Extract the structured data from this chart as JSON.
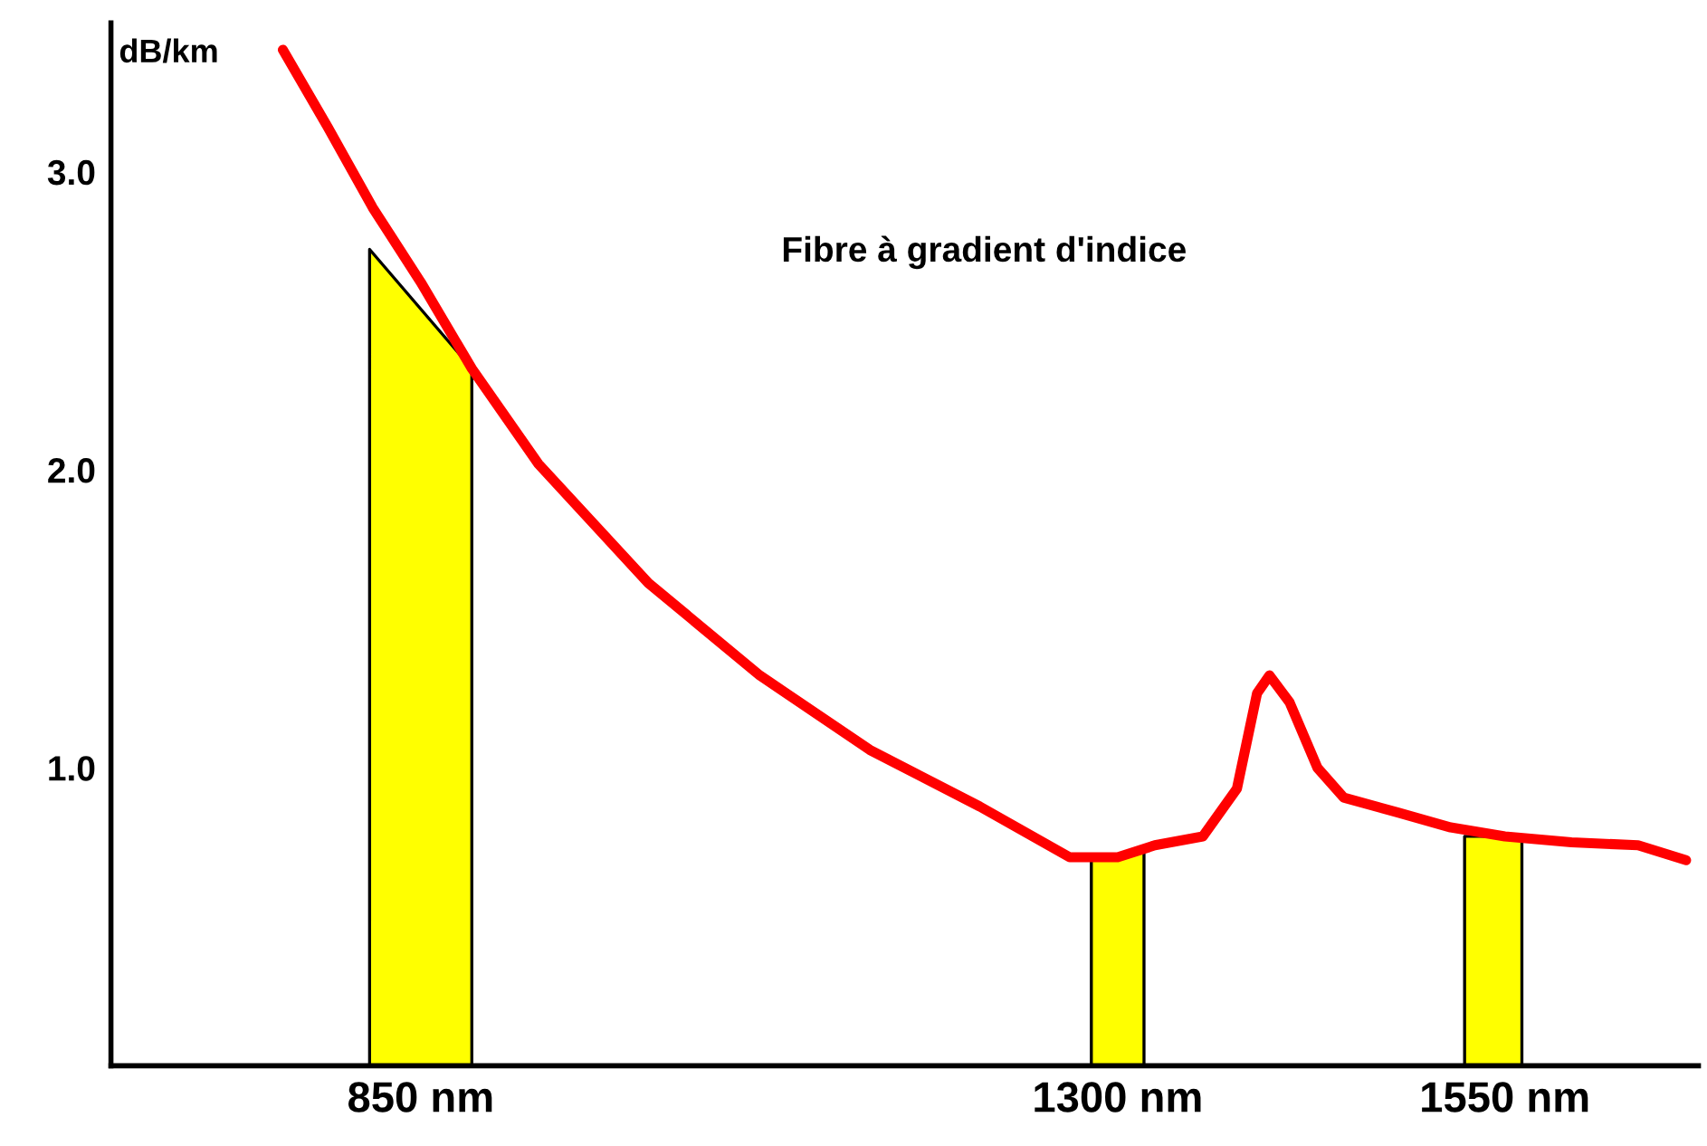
{
  "chart_data": {
    "type": "line",
    "ylabel": "dB/km",
    "annotations": [
      "Fibre à gradient d'indice"
    ],
    "xlim": [
      650,
      1675
    ],
    "ylim": [
      0,
      3.5
    ],
    "xticks": [
      {
        "value": 850,
        "label": "850 nm"
      },
      {
        "value": 1300,
        "label": "1300 nm"
      },
      {
        "value": 1550,
        "label": "1550 nm"
      }
    ],
    "yticks": [
      {
        "value": 1,
        "label": "1.0"
      },
      {
        "value": 2,
        "label": "2.0"
      },
      {
        "value": 3,
        "label": "3.0"
      }
    ],
    "grid": false,
    "series": [
      {
        "type": "area",
        "color": "#ffff00",
        "x": [
          817,
          883
        ],
        "values": [
          2.74,
          2.34
        ]
      },
      {
        "type": "area",
        "color": "#ffff00",
        "x": [
          1283,
          1317
        ],
        "values": [
          0.7,
          0.72
        ]
      },
      {
        "type": "area",
        "color": "#ffff00",
        "x": [
          1524,
          1561
        ],
        "values": [
          0.77,
          0.77
        ]
      },
      {
        "color": "#ff0000",
        "x": [
          761,
          790,
          819,
          850,
          883,
          926,
          997,
          1069,
          1140,
          1211,
          1269,
          1300,
          1324,
          1355,
          1377,
          1390,
          1398,
          1411,
          1429,
          1446,
          1481,
          1515,
          1550,
          1593,
          1636,
          1667
        ],
        "values": [
          3.41,
          3.15,
          2.88,
          2.63,
          2.34,
          2.02,
          1.62,
          1.31,
          1.06,
          0.87,
          0.7,
          0.7,
          0.74,
          0.77,
          0.93,
          1.25,
          1.31,
          1.22,
          1.0,
          0.9,
          0.85,
          0.8,
          0.77,
          0.75,
          0.74,
          0.69
        ]
      }
    ]
  }
}
